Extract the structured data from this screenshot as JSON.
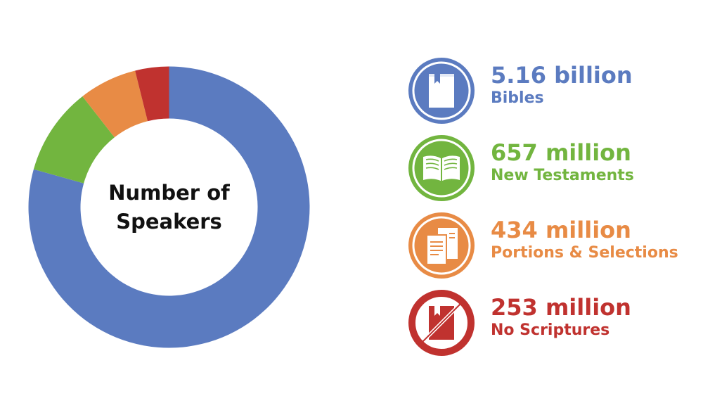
{
  "chart_data": {
    "type": "pie",
    "title": "",
    "center_label": [
      "Number of",
      "Speakers"
    ],
    "series": [
      {
        "name": "Bibles",
        "value_label": "5.16 billion",
        "value": 5160,
        "color": "#5B7BC0",
        "icon": "closed-book-icon"
      },
      {
        "name": "New Testaments",
        "value_label": "657 million",
        "value": 657,
        "color": "#72B53F",
        "icon": "open-book-icon"
      },
      {
        "name": "Portions & Selections",
        "value_label": "434 million",
        "value": 434,
        "color": "#E88B45",
        "icon": "pages-icon"
      },
      {
        "name": "No Scriptures",
        "value_label": "253 million",
        "value": 253,
        "color": "#C0322F",
        "icon": "crossed-book-icon"
      }
    ],
    "units": "millions of speakers"
  }
}
